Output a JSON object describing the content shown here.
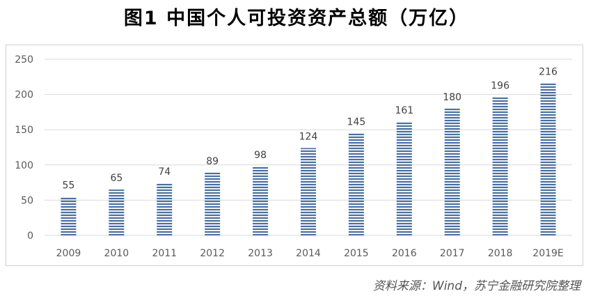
{
  "title": "图1  中国个人可投资资产总额（万亿）",
  "source": "资料来源：Wind，苏宁金融研究院整理",
  "colors": {
    "bar_stripe": "#4a6fa0",
    "grid": "#d9d9d9",
    "axis_text": "#595959",
    "label_text": "#404040"
  },
  "chart_data": {
    "type": "bar",
    "categories": [
      "2009",
      "2010",
      "2011",
      "2012",
      "2013",
      "2014",
      "2015",
      "2016",
      "2017",
      "2018",
      "2019E"
    ],
    "values": [
      55,
      65,
      74,
      89,
      98,
      124,
      145,
      161,
      180,
      196,
      216
    ],
    "ylim": [
      0,
      250
    ],
    "yticks": [
      "0",
      "50",
      "100",
      "150",
      "200",
      "250"
    ],
    "grid": true,
    "legend": "none",
    "bar_pattern": "horizontal-stripes"
  }
}
